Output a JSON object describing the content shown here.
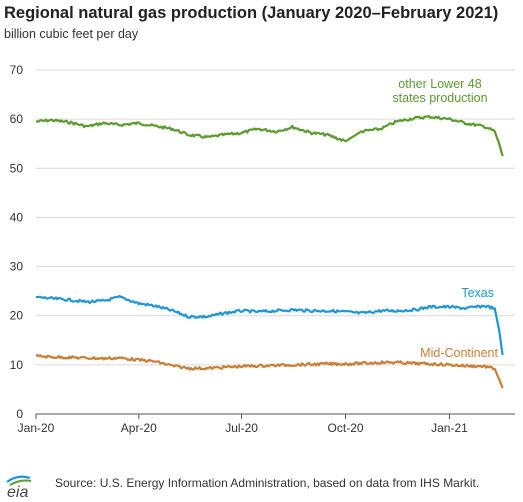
{
  "header": {
    "title": "Regional natural gas production (January 2020–February 2021)",
    "subtitle": "billion cubic feet per day"
  },
  "footer": {
    "source": "Source: U.S. Energy Information Administration, based on data from IHS Markit.",
    "logo_text": "eia"
  },
  "chart_data": {
    "type": "line",
    "title": "Regional natural gas production (January 2020–February 2021)",
    "ylabel": "billion cubic feet per day",
    "xlabel": "",
    "ylim": [
      0,
      70
    ],
    "yticks": [
      0,
      10,
      20,
      30,
      40,
      50,
      60,
      70
    ],
    "xlim": [
      "2020-01-01",
      "2021-02-28"
    ],
    "xticks": [
      {
        "date": "2020-01-01",
        "label": "Jan-20"
      },
      {
        "date": "2020-04-01",
        "label": "Apr-20"
      },
      {
        "date": "2020-07-01",
        "label": "Jul-20"
      },
      {
        "date": "2020-10-01",
        "label": "Oct-20"
      },
      {
        "date": "2021-01-01",
        "label": "Jan-21"
      }
    ],
    "grid": "horizontal",
    "legend": "inline labels",
    "series": [
      {
        "name": "other Lower 48 states production",
        "label_lines": [
          "other Lower 48",
          "states production"
        ],
        "color": "#5b9a2e",
        "points": [
          [
            "2020-01-01",
            59.5
          ],
          [
            "2020-01-15",
            59.8
          ],
          [
            "2020-02-01",
            59.3
          ],
          [
            "2020-02-15",
            58.5
          ],
          [
            "2020-03-01",
            59.2
          ],
          [
            "2020-03-15",
            58.8
          ],
          [
            "2020-04-01",
            59.2
          ],
          [
            "2020-04-15",
            58.6
          ],
          [
            "2020-05-01",
            58.0
          ],
          [
            "2020-05-15",
            56.8
          ],
          [
            "2020-06-01",
            56.3
          ],
          [
            "2020-06-15",
            56.8
          ],
          [
            "2020-07-01",
            57.2
          ],
          [
            "2020-07-15",
            58.0
          ],
          [
            "2020-08-01",
            57.5
          ],
          [
            "2020-08-15",
            58.4
          ],
          [
            "2020-09-01",
            57.2
          ],
          [
            "2020-09-15",
            56.8
          ],
          [
            "2020-10-01",
            55.5
          ],
          [
            "2020-10-15",
            57.5
          ],
          [
            "2020-11-01",
            58.0
          ],
          [
            "2020-11-15",
            59.5
          ],
          [
            "2020-12-01",
            60.2
          ],
          [
            "2020-12-15",
            60.5
          ],
          [
            "2021-01-01",
            60.0
          ],
          [
            "2021-01-15",
            59.2
          ],
          [
            "2021-02-01",
            58.5
          ],
          [
            "2021-02-10",
            57.5
          ],
          [
            "2021-02-14",
            55.0
          ],
          [
            "2021-02-17",
            52.5
          ]
        ]
      },
      {
        "name": "Texas",
        "label_lines": [
          "Texas"
        ],
        "color": "#1f96d6",
        "points": [
          [
            "2020-01-01",
            23.8
          ],
          [
            "2020-01-15",
            23.5
          ],
          [
            "2020-02-01",
            23.2
          ],
          [
            "2020-02-15",
            22.8
          ],
          [
            "2020-03-01",
            23.0
          ],
          [
            "2020-03-15",
            23.8
          ],
          [
            "2020-04-01",
            22.5
          ],
          [
            "2020-04-15",
            22.0
          ],
          [
            "2020-05-01",
            21.0
          ],
          [
            "2020-05-15",
            19.8
          ],
          [
            "2020-06-01",
            19.8
          ],
          [
            "2020-06-15",
            20.5
          ],
          [
            "2020-07-01",
            21.0
          ],
          [
            "2020-07-15",
            20.8
          ],
          [
            "2020-08-01",
            21.0
          ],
          [
            "2020-08-15",
            21.2
          ],
          [
            "2020-09-01",
            21.0
          ],
          [
            "2020-09-15",
            21.0
          ],
          [
            "2020-10-01",
            20.8
          ],
          [
            "2020-10-15",
            20.5
          ],
          [
            "2020-11-01",
            21.0
          ],
          [
            "2020-11-15",
            21.0
          ],
          [
            "2020-12-01",
            21.2
          ],
          [
            "2020-12-15",
            21.8
          ],
          [
            "2021-01-01",
            21.8
          ],
          [
            "2021-01-15",
            21.5
          ],
          [
            "2021-02-01",
            22.0
          ],
          [
            "2021-02-10",
            21.5
          ],
          [
            "2021-02-14",
            17.0
          ],
          [
            "2021-02-17",
            12.0
          ]
        ]
      },
      {
        "name": "Mid-Continent",
        "label_lines": [
          "Mid-Continent"
        ],
        "color": "#c87f35",
        "points": [
          [
            "2020-01-01",
            11.8
          ],
          [
            "2020-01-15",
            11.6
          ],
          [
            "2020-02-01",
            11.5
          ],
          [
            "2020-02-15",
            11.4
          ],
          [
            "2020-03-01",
            11.3
          ],
          [
            "2020-03-15",
            11.4
          ],
          [
            "2020-04-01",
            11.0
          ],
          [
            "2020-04-15",
            10.7
          ],
          [
            "2020-05-01",
            9.8
          ],
          [
            "2020-05-15",
            9.3
          ],
          [
            "2020-06-01",
            9.3
          ],
          [
            "2020-06-15",
            9.5
          ],
          [
            "2020-07-01",
            9.7
          ],
          [
            "2020-07-15",
            9.8
          ],
          [
            "2020-08-01",
            9.9
          ],
          [
            "2020-08-15",
            10.0
          ],
          [
            "2020-09-01",
            10.1
          ],
          [
            "2020-09-15",
            10.2
          ],
          [
            "2020-10-01",
            10.2
          ],
          [
            "2020-10-15",
            10.3
          ],
          [
            "2020-11-01",
            10.5
          ],
          [
            "2020-11-15",
            10.5
          ],
          [
            "2020-12-01",
            10.3
          ],
          [
            "2020-12-15",
            10.2
          ],
          [
            "2021-01-01",
            10.0
          ],
          [
            "2021-01-15",
            9.8
          ],
          [
            "2021-02-01",
            9.7
          ],
          [
            "2021-02-10",
            9.2
          ],
          [
            "2021-02-14",
            7.0
          ],
          [
            "2021-02-17",
            5.3
          ]
        ]
      }
    ]
  }
}
